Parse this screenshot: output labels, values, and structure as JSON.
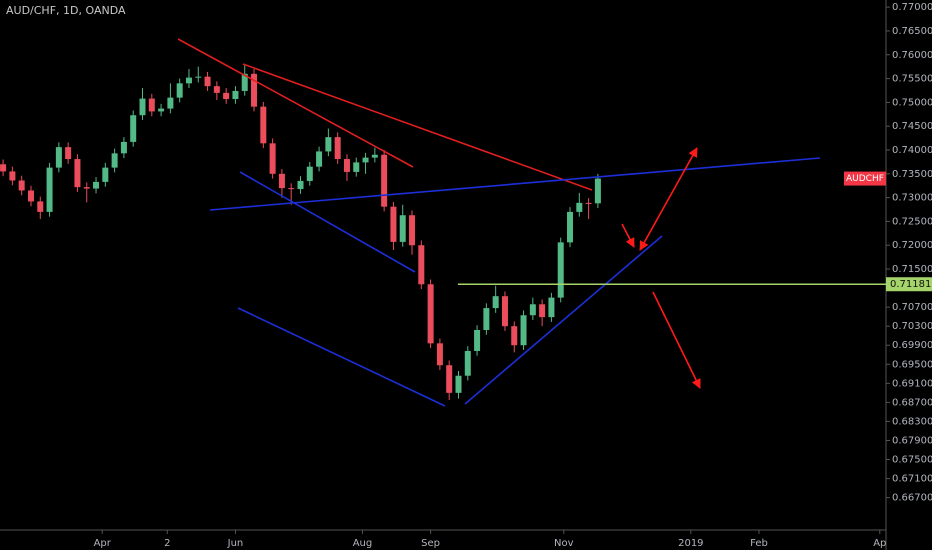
{
  "chart_data": {
    "type": "candlestick",
    "title": "AUD/CHF, 1D, OANDA",
    "symbol_label": "AUDCHF",
    "x": [
      1,
      4,
      7,
      10,
      13,
      16,
      19,
      22,
      25,
      28,
      31,
      34,
      37,
      40,
      43,
      46,
      49,
      52,
      55,
      58,
      61,
      64,
      67,
      70,
      73,
      76,
      79,
      82,
      85,
      88,
      91,
      94,
      97,
      100,
      103,
      106,
      109,
      112,
      115,
      118,
      121,
      124,
      127,
      130,
      133,
      136,
      139,
      142,
      145,
      148,
      151,
      154,
      157,
      160,
      163,
      166,
      169,
      172,
      175,
      178,
      181,
      184,
      187,
      190,
      193
    ],
    "open": [
      0.737,
      0.7355,
      0.7336,
      0.7315,
      0.7292,
      0.727,
      0.7363,
      0.7406,
      0.7381,
      0.7322,
      0.7319,
      0.7333,
      0.7363,
      0.7393,
      0.7417,
      0.7473,
      0.7508,
      0.7481,
      0.7487,
      0.751,
      0.754,
      0.7552,
      0.7554,
      0.7534,
      0.752,
      0.7507,
      0.7524,
      0.756,
      0.7491,
      0.7414,
      0.735,
      0.732,
      0.7318,
      0.7335,
      0.7365,
      0.7397,
      0.7427,
      0.7381,
      0.7354,
      0.7374,
      0.7384,
      0.739,
      0.7281,
      0.7207,
      0.7263,
      0.72,
      0.7118,
      0.6994,
      0.6948,
      0.689,
      0.6926,
      0.6978,
      0.7022,
      0.7068,
      0.7093,
      0.703,
      0.699,
      0.7053,
      0.7076,
      0.7049,
      0.709,
      0.7206,
      0.727,
      0.7289,
      0.7288
    ],
    "high": [
      0.738,
      0.7365,
      0.7346,
      0.7325,
      0.7302,
      0.7373,
      0.7416,
      0.7416,
      0.7391,
      0.7332,
      0.7343,
      0.7373,
      0.7403,
      0.7427,
      0.7483,
      0.753,
      0.7518,
      0.7497,
      0.754,
      0.755,
      0.757,
      0.7575,
      0.7564,
      0.7544,
      0.753,
      0.7534,
      0.758,
      0.757,
      0.7501,
      0.7424,
      0.736,
      0.733,
      0.7345,
      0.7375,
      0.7407,
      0.7445,
      0.7437,
      0.7391,
      0.7384,
      0.7394,
      0.7405,
      0.74,
      0.7291,
      0.7285,
      0.7273,
      0.721,
      0.7128,
      0.7004,
      0.6958,
      0.6936,
      0.6988,
      0.7032,
      0.7078,
      0.7115,
      0.7103,
      0.704,
      0.7063,
      0.709,
      0.7086,
      0.71,
      0.7216,
      0.728,
      0.731,
      0.7299,
      0.735
    ],
    "low": [
      0.7345,
      0.7326,
      0.7305,
      0.7282,
      0.7255,
      0.726,
      0.7353,
      0.7371,
      0.7312,
      0.729,
      0.7309,
      0.7323,
      0.7353,
      0.7383,
      0.7407,
      0.7463,
      0.7471,
      0.7471,
      0.7477,
      0.75,
      0.753,
      0.7542,
      0.7524,
      0.7505,
      0.7497,
      0.7497,
      0.7514,
      0.7481,
      0.7404,
      0.734,
      0.73,
      0.7285,
      0.7308,
      0.7325,
      0.7355,
      0.7387,
      0.7371,
      0.7335,
      0.7344,
      0.735,
      0.7374,
      0.7271,
      0.719,
      0.7197,
      0.718,
      0.7108,
      0.6984,
      0.6938,
      0.6875,
      0.6878,
      0.6916,
      0.6968,
      0.7012,
      0.7058,
      0.702,
      0.6975,
      0.698,
      0.7043,
      0.703,
      0.7039,
      0.708,
      0.7196,
      0.726,
      0.7255,
      0.7278
    ],
    "close": [
      0.7355,
      0.7336,
      0.7315,
      0.7292,
      0.727,
      0.7363,
      0.7406,
      0.7381,
      0.7322,
      0.7319,
      0.7333,
      0.7363,
      0.7393,
      0.7417,
      0.7473,
      0.7508,
      0.7481,
      0.7487,
      0.751,
      0.754,
      0.7552,
      0.7554,
      0.7534,
      0.752,
      0.7507,
      0.7524,
      0.756,
      0.7491,
      0.7414,
      0.735,
      0.732,
      0.7318,
      0.7335,
      0.7365,
      0.7397,
      0.7427,
      0.7381,
      0.7354,
      0.7374,
      0.7384,
      0.739,
      0.7281,
      0.7207,
      0.7263,
      0.72,
      0.7118,
      0.6994,
      0.6948,
      0.689,
      0.6926,
      0.6978,
      0.7022,
      0.7068,
      0.7093,
      0.703,
      0.699,
      0.7053,
      0.7076,
      0.7049,
      0.709,
      0.7206,
      0.727,
      0.7289,
      0.7288,
      0.734
    ],
    "up_color": "#53b987",
    "down_color": "#eb4d5c",
    "price_line": 0.71181,
    "price_line_color": "#a5d46a",
    "badge_color": "#f23645",
    "xlim": [
      0,
      286
    ],
    "ylim": [
      0.6602,
      0.7715
    ],
    "xticks": [
      {
        "value": 33,
        "label": "Apr"
      },
      {
        "value": 54,
        "label": "2"
      },
      {
        "value": 76,
        "label": "Jun"
      },
      {
        "value": 117,
        "label": "Aug"
      },
      {
        "value": 139,
        "label": "Sep"
      },
      {
        "value": 182,
        "label": "Nov"
      },
      {
        "value": 223,
        "label": "2019"
      },
      {
        "value": 245,
        "label": "Feb"
      },
      {
        "value": 284,
        "label": "Ap"
      }
    ],
    "yticks": [
      {
        "value": 0.77,
        "label": "0.77000"
      },
      {
        "value": 0.765,
        "label": "0.76500"
      },
      {
        "value": 0.76,
        "label": "0.76000"
      },
      {
        "value": 0.755,
        "label": "0.75500"
      },
      {
        "value": 0.75,
        "label": "0.75000"
      },
      {
        "value": 0.745,
        "label": "0.74500"
      },
      {
        "value": 0.74,
        "label": "0.74000"
      },
      {
        "value": 0.735,
        "label": "0.73500"
      },
      {
        "value": 0.73,
        "label": "0.73000"
      },
      {
        "value": 0.725,
        "label": "0.72500"
      },
      {
        "value": 0.72,
        "label": "0.72000"
      },
      {
        "value": 0.715,
        "label": "0.71500"
      },
      {
        "value": 0.707,
        "label": "0.70700"
      },
      {
        "value": 0.703,
        "label": "0.70300"
      },
      {
        "value": 0.699,
        "label": "0.69900"
      },
      {
        "value": 0.695,
        "label": "0.69500"
      },
      {
        "value": 0.691,
        "label": "0.69100"
      },
      {
        "value": 0.687,
        "label": "0.68700"
      },
      {
        "value": 0.683,
        "label": "0.68300"
      },
      {
        "value": 0.679,
        "label": "0.67900"
      },
      {
        "value": 0.675,
        "label": "0.67500"
      },
      {
        "value": 0.671,
        "label": "0.67100"
      },
      {
        "value": 0.667,
        "label": "0.66700"
      }
    ]
  }
}
